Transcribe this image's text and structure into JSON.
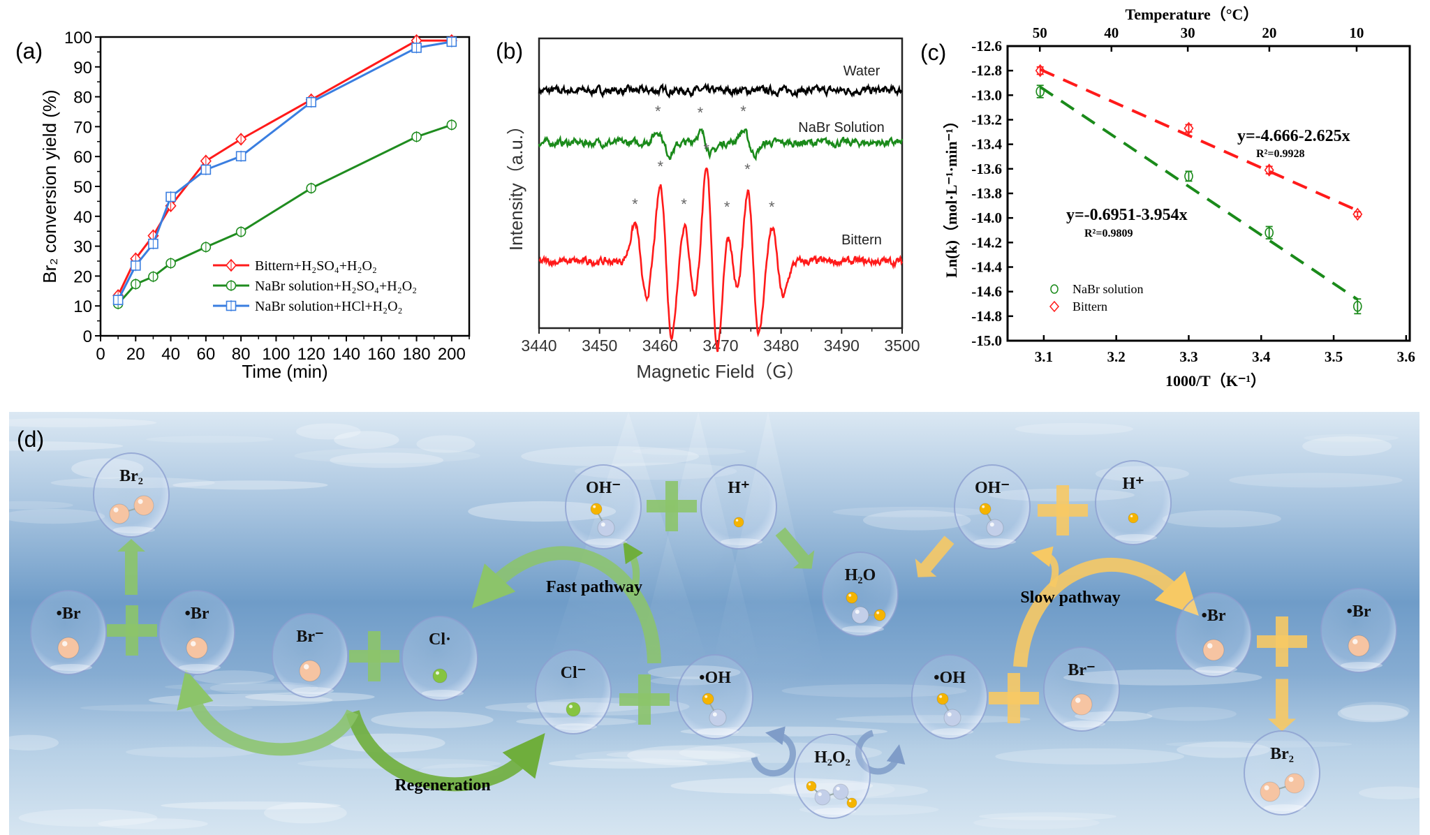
{
  "panels": {
    "a_label": "(a)",
    "b_label": "(b)",
    "c_label": "(c)",
    "d_label": "(d)"
  },
  "chart_data": [
    {
      "panel": "(a)",
      "type": "line",
      "xlabel": "Time (min)",
      "ylabel": "Br₂ conversion yield (%)",
      "xlim": [
        0,
        210
      ],
      "ylim": [
        0,
        100
      ],
      "xticks": [
        "0",
        "20",
        "40",
        "60",
        "80",
        "100",
        "120",
        "140",
        "160",
        "180",
        "200"
      ],
      "yticks": [
        "0",
        "10",
        "20",
        "30",
        "40",
        "50",
        "60",
        "70",
        "80",
        "90",
        "100"
      ],
      "x": [
        10,
        20,
        30,
        40,
        60,
        80,
        120,
        180,
        200
      ],
      "legend_position": "bottom-right",
      "grid": false,
      "series": [
        {
          "name": "Bittern+H₂SO₄+H₂O₂",
          "color": "#ff1a1a",
          "marker": "diamond",
          "values": [
            13.5,
            25.8,
            33.5,
            43.5,
            58.5,
            65.8,
            79.0,
            98.8,
            98.8
          ]
        },
        {
          "name": "NaBr solution+H₂SO₄+H₂O₂",
          "color": "#1f8c1f",
          "marker": "circle",
          "values": [
            10.7,
            17.3,
            19.8,
            24.3,
            29.7,
            34.8,
            49.4,
            66.6,
            70.6
          ]
        },
        {
          "name": "NaBr solution+HCl+H₂O₂",
          "color": "#3a7ee0",
          "marker": "square",
          "values": [
            12.0,
            23.5,
            30.8,
            46.5,
            55.6,
            60.1,
            78.2,
            96.4,
            98.4
          ]
        }
      ]
    },
    {
      "panel": "(b)",
      "type": "line",
      "xlabel": "Magnetic Field（G）",
      "ylabel": "Intensity（a.u.）",
      "xlim": [
        3440,
        3500
      ],
      "xticks": [
        "3440",
        "3450",
        "3460",
        "3470",
        "3480",
        "3490",
        "3500"
      ],
      "peak_marker": "*",
      "series": [
        {
          "name": "Water",
          "color": "#000000",
          "offset": 0.82,
          "lines": []
        },
        {
          "name": "NaBr Solution",
          "color": "#1a8a1a",
          "offset": 0.64,
          "lines": [
            {
              "field": 3460.6,
              "amplitude": 0.04
            },
            {
              "field": 3467.6,
              "amplitude": 0.035
            },
            {
              "field": 3474.7,
              "amplitude": 0.04
            }
          ]
        },
        {
          "name": "Bittern",
          "color": "#ff1a1a",
          "offset": 0.23,
          "lines": [
            {
              "field": 3456.8,
              "amplitude": 0.13
            },
            {
              "field": 3461.0,
              "amplitude": 0.26
            },
            {
              "field": 3464.9,
              "amplitude": 0.13
            },
            {
              "field": 3468.6,
              "amplitude": 0.32
            },
            {
              "field": 3472.0,
              "amplitude": 0.12
            },
            {
              "field": 3475.4,
              "amplitude": 0.25
            },
            {
              "field": 3479.4,
              "amplitude": 0.12
            }
          ]
        }
      ]
    },
    {
      "panel": "(c)",
      "type": "scatter",
      "xlabel": "1000/T（K⁻¹）",
      "ylabel": "Ln(k)（mol·L⁻¹·min⁻¹）",
      "top_xlabel": "Temperature（°C）",
      "xlim": [
        3.05,
        3.605
      ],
      "ylim": [
        -15.0,
        -12.6
      ],
      "xticks": [
        "3.1",
        "3.2",
        "3.3",
        "3.4",
        "3.5",
        "3.6"
      ],
      "yticks": [
        "-12.6",
        "-12.8",
        "-13.0",
        "-13.2",
        "-13.4",
        "-13.6",
        "-13.8",
        "-14.0",
        "-14.2",
        "-14.4",
        "-14.6",
        "-14.8",
        "-15.0"
      ],
      "top_xticks": [
        "50",
        "40",
        "30",
        "20",
        "10"
      ],
      "legend_position": "bottom-left",
      "series": [
        {
          "name": "NaBr solution",
          "color": "#1a8a1a",
          "marker": "circle",
          "x": [
            3.095,
            3.3,
            3.411,
            3.533
          ],
          "y": [
            -12.97,
            -13.66,
            -14.12,
            -14.72
          ],
          "error": [
            0.05,
            0.04,
            0.05,
            0.06
          ],
          "fit": {
            "intercept": -0.6951,
            "slope": -3.954,
            "equation": "y=-0.6951-3.954x",
            "r2": "R²=0.9809"
          }
        },
        {
          "name": "Bittern",
          "color": "#ff1a1a",
          "marker": "diamond",
          "x": [
            3.095,
            3.3,
            3.411,
            3.533
          ],
          "y": [
            -12.8,
            -13.27,
            -13.61,
            -13.97
          ],
          "error": [
            0.03,
            0.03,
            0.03,
            0.02
          ],
          "fit": {
            "intercept": -4.666,
            "slope": -2.625,
            "equation": "y=-4.666-2.625x",
            "r2": "R²=0.9928"
          }
        }
      ]
    }
  ],
  "scheme": {
    "bubbles": [
      {
        "label": "Br₂",
        "molecule": "Br2"
      },
      {
        "label": "•Br",
        "molecule": "Br"
      },
      {
        "label": "•Br",
        "molecule": "Br"
      },
      {
        "label": "Br⁻",
        "molecule": "Br"
      },
      {
        "label": "Cl·",
        "molecule": "Cl"
      },
      {
        "label": "OH⁻",
        "molecule": "OH"
      },
      {
        "label": "H⁺",
        "molecule": "H"
      },
      {
        "label": "Cl⁻",
        "molecule": "Cl"
      },
      {
        "label": "•OH",
        "molecule": "OH"
      },
      {
        "label": "H₂O",
        "molecule": "H2O"
      },
      {
        "label": "H₂O₂",
        "molecule": "H2O2"
      },
      {
        "label": "OH⁻",
        "molecule": "OH"
      },
      {
        "label": "H⁺",
        "molecule": "H"
      },
      {
        "label": "•OH",
        "molecule": "OH"
      },
      {
        "label": "Br⁻",
        "molecule": "Br"
      },
      {
        "label": "•Br",
        "molecule": "Br"
      },
      {
        "label": "•Br",
        "molecule": "Br"
      },
      {
        "label": "Br₂",
        "molecule": "Br2"
      }
    ],
    "pathway_labels": {
      "fast": "Fast pathway",
      "slow": "Slow pathway",
      "regeneration": "Regeneration"
    },
    "colors": {
      "fast": "#8cc46a",
      "slow": "#f7c964",
      "cycle": "#7f9cc8",
      "br_atom": "#f6c4a2",
      "cl_atom": "#86c440",
      "h_atom": "#f5b400",
      "o_atom": "#c3cfe9"
    }
  }
}
